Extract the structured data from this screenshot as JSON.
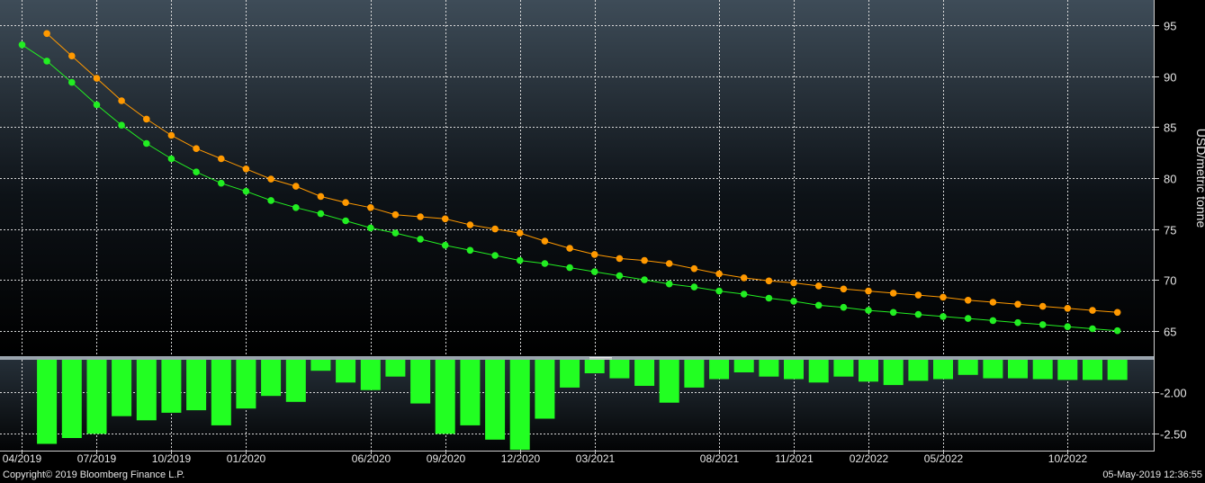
{
  "chart_data": [
    {
      "type": "line",
      "ylabel": "USD/metric tonne",
      "ylim": [
        62.5,
        97.5
      ],
      "yticks": [
        "95",
        "90",
        "85",
        "80",
        "75",
        "70",
        "65"
      ],
      "grid": true,
      "xlim": [
        "2019-03",
        "2023-02"
      ],
      "series": [
        {
          "color": "#ff9900",
          "points": [
            [
              "2019-05",
              94.2
            ],
            [
              "2019-06",
              92.0
            ],
            [
              "2019-07",
              89.8
            ],
            [
              "2019-08",
              87.6
            ],
            [
              "2019-09",
              85.8
            ],
            [
              "2019-10",
              84.2
            ],
            [
              "2019-11",
              82.9
            ],
            [
              "2019-12",
              81.9
            ],
            [
              "2020-01",
              80.9
            ],
            [
              "2020-02",
              79.9
            ],
            [
              "2020-03",
              79.2
            ],
            [
              "2020-04",
              78.2
            ],
            [
              "2020-05",
              77.6
            ],
            [
              "2020-06",
              77.1
            ],
            [
              "2020-07",
              76.4
            ],
            [
              "2020-08",
              76.2
            ],
            [
              "2020-09",
              76.0
            ],
            [
              "2020-10",
              75.4
            ],
            [
              "2020-11",
              75.0
            ],
            [
              "2020-12",
              74.6
            ],
            [
              "2021-01",
              73.8
            ],
            [
              "2021-02",
              73.1
            ],
            [
              "2021-03",
              72.5
            ],
            [
              "2021-04",
              72.1
            ],
            [
              "2021-05",
              71.9
            ],
            [
              "2021-06",
              71.6
            ],
            [
              "2021-07",
              71.1
            ],
            [
              "2021-08",
              70.6
            ],
            [
              "2021-09",
              70.2
            ],
            [
              "2021-10",
              69.9
            ],
            [
              "2021-11",
              69.7
            ],
            [
              "2021-12",
              69.4
            ],
            [
              "2022-01",
              69.1
            ],
            [
              "2022-02",
              68.9
            ],
            [
              "2022-03",
              68.7
            ],
            [
              "2022-04",
              68.5
            ],
            [
              "2022-05",
              68.3
            ],
            [
              "2022-06",
              68.0
            ],
            [
              "2022-07",
              67.8
            ],
            [
              "2022-08",
              67.6
            ],
            [
              "2022-09",
              67.4
            ],
            [
              "2022-10",
              67.2
            ],
            [
              "2022-11",
              67.0
            ],
            [
              "2022-12",
              66.8
            ]
          ]
        },
        {
          "color": "#22ee22",
          "points": [
            [
              "2019-04",
              93.1
            ],
            [
              "2019-05",
              91.5
            ],
            [
              "2019-06",
              89.4
            ],
            [
              "2019-07",
              87.2
            ],
            [
              "2019-08",
              85.2
            ],
            [
              "2019-09",
              83.4
            ],
            [
              "2019-10",
              81.9
            ],
            [
              "2019-11",
              80.6
            ],
            [
              "2019-12",
              79.5
            ],
            [
              "2020-01",
              78.7
            ],
            [
              "2020-02",
              77.8
            ],
            [
              "2020-03",
              77.1
            ],
            [
              "2020-04",
              76.5
            ],
            [
              "2020-05",
              75.8
            ],
            [
              "2020-06",
              75.1
            ],
            [
              "2020-07",
              74.6
            ],
            [
              "2020-08",
              74.0
            ],
            [
              "2020-09",
              73.4
            ],
            [
              "2020-10",
              72.9
            ],
            [
              "2020-11",
              72.4
            ],
            [
              "2020-12",
              71.9
            ],
            [
              "2021-01",
              71.6
            ],
            [
              "2021-02",
              71.2
            ],
            [
              "2021-03",
              70.8
            ],
            [
              "2021-04",
              70.4
            ],
            [
              "2021-05",
              70.0
            ],
            [
              "2021-06",
              69.6
            ],
            [
              "2021-07",
              69.3
            ],
            [
              "2021-08",
              68.9
            ],
            [
              "2021-09",
              68.6
            ],
            [
              "2021-10",
              68.2
            ],
            [
              "2021-11",
              67.9
            ],
            [
              "2021-12",
              67.5
            ],
            [
              "2022-01",
              67.3
            ],
            [
              "2022-02",
              67.0
            ],
            [
              "2022-03",
              66.8
            ],
            [
              "2022-04",
              66.6
            ],
            [
              "2022-05",
              66.4
            ],
            [
              "2022-06",
              66.2
            ],
            [
              "2022-07",
              66.0
            ],
            [
              "2022-08",
              65.8
            ],
            [
              "2022-09",
              65.6
            ],
            [
              "2022-10",
              65.4
            ],
            [
              "2022-11",
              65.2
            ],
            [
              "2022-12",
              65.0
            ]
          ]
        }
      ]
    },
    {
      "type": "bar",
      "ylim": [
        -2.7,
        -1.62
      ],
      "yticks": [
        "-2.00",
        "-2.50"
      ],
      "bar_color": "#22ff22",
      "grid": true,
      "x_tick_labels": [
        [
          "2019-04",
          "04/2019"
        ],
        [
          "2019-07",
          "07/2019"
        ],
        [
          "2019-10",
          "10/2019"
        ],
        [
          "2020-01",
          "01/2020"
        ],
        [
          "2020-06",
          "06/2020"
        ],
        [
          "2020-09",
          "09/2020"
        ],
        [
          "2020-12",
          "12/2020"
        ],
        [
          "2021-03",
          "03/2021"
        ],
        [
          "2021-08",
          "08/2021"
        ],
        [
          "2021-11",
          "11/2021"
        ],
        [
          "2022-02",
          "02/2022"
        ],
        [
          "2022-05",
          "05/2022"
        ],
        [
          "2022-10",
          "10/2022"
        ]
      ],
      "points": [
        [
          "2019-05",
          -2.62
        ],
        [
          "2019-06",
          -2.55
        ],
        [
          "2019-07",
          -2.5
        ],
        [
          "2019-08",
          -2.29
        ],
        [
          "2019-09",
          -2.34
        ],
        [
          "2019-10",
          -2.25
        ],
        [
          "2019-11",
          -2.22
        ],
        [
          "2019-12",
          -2.4
        ],
        [
          "2020-01",
          -2.2
        ],
        [
          "2020-02",
          -2.05
        ],
        [
          "2020-03",
          -2.12
        ],
        [
          "2020-04",
          -1.75
        ],
        [
          "2020-05",
          -1.89
        ],
        [
          "2020-06",
          -1.98
        ],
        [
          "2020-07",
          -1.82
        ],
        [
          "2020-08",
          -2.14
        ],
        [
          "2020-09",
          -2.5
        ],
        [
          "2020-10",
          -2.4
        ],
        [
          "2020-11",
          -2.57
        ],
        [
          "2020-12",
          -2.69
        ],
        [
          "2021-01",
          -2.32
        ],
        [
          "2021-02",
          -1.95
        ],
        [
          "2021-03",
          -1.78
        ],
        [
          "2021-04",
          -1.84
        ],
        [
          "2021-05",
          -1.93
        ],
        [
          "2021-06",
          -2.13
        ],
        [
          "2021-07",
          -1.95
        ],
        [
          "2021-08",
          -1.85
        ],
        [
          "2021-09",
          -1.77
        ],
        [
          "2021-10",
          -1.82
        ],
        [
          "2021-11",
          -1.85
        ],
        [
          "2021-12",
          -1.89
        ],
        [
          "2022-01",
          -1.82
        ],
        [
          "2022-02",
          -1.88
        ],
        [
          "2022-03",
          -1.92
        ],
        [
          "2022-04",
          -1.87
        ],
        [
          "2022-05",
          -1.85
        ],
        [
          "2022-06",
          -1.8
        ],
        [
          "2022-07",
          -1.84
        ],
        [
          "2022-08",
          -1.84
        ],
        [
          "2022-09",
          -1.85
        ],
        [
          "2022-10",
          -1.86
        ],
        [
          "2022-11",
          -1.86
        ],
        [
          "2022-12",
          -1.86
        ]
      ]
    }
  ],
  "footer": {
    "copyright": "Copyright© 2019 Bloomberg Finance L.P.",
    "timestamp": "05-May-2019 12:36:55"
  }
}
